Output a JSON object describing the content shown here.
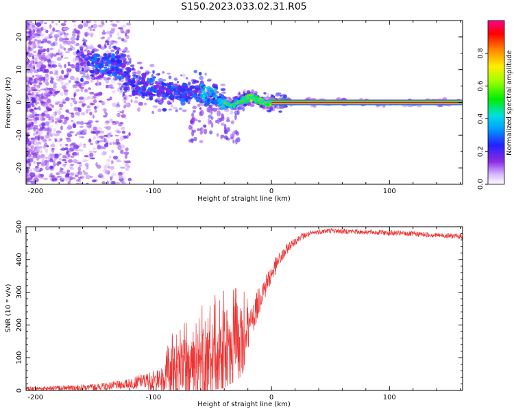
{
  "figure_title": "S150.2023.033.02.31.R05",
  "chart_data": [
    {
      "type": "heatmap",
      "title": "S150.2023.033.02.31.R05",
      "xlabel": "Height of straight line (km)",
      "ylabel": "Frequency (Hz)",
      "xlim": [
        -208,
        162
      ],
      "ylim": [
        -25,
        25
      ],
      "xticks": [
        -200,
        -100,
        0,
        100
      ],
      "xtick_labels": [
        "-200",
        "-100",
        "0",
        "100"
      ],
      "yticks": [
        -20,
        -10,
        0,
        10,
        20
      ],
      "ytick_labels": [
        "-20",
        "-10",
        "0",
        "10",
        "20"
      ],
      "colorbar": {
        "label": "Normalized spectral amplitude",
        "range": [
          0,
          1
        ],
        "ticks": [
          0.0,
          0.2,
          0.4,
          0.6,
          0.8
        ],
        "tick_labels": [
          "0.0",
          "0.2",
          "0.4",
          "0.6",
          "0.8"
        ],
        "colormap": "rainbow (white-purple-blue-cyan-green-yellow-red-magenta)"
      },
      "ridge_path": {
        "description": "Spectral ridge frequency vs height",
        "x": [
          -150,
          -130,
          -115,
          -100,
          -80,
          -60,
          -45,
          -35,
          -25,
          -18,
          -12,
          -5,
          0,
          10,
          162
        ],
        "y": [
          12,
          11,
          5,
          4,
          3,
          3,
          1,
          -1,
          0.5,
          1.5,
          0.8,
          0,
          0,
          0,
          0
        ]
      },
      "steady_line": {
        "x_start": 0,
        "x_end": 162,
        "frequency": 0,
        "amplitude": 1.0
      }
    },
    {
      "type": "line",
      "xlabel": "Height of straight line (km)",
      "ylabel": "SNR (10 * v/v)",
      "xlim": [
        -208,
        162
      ],
      "ylim": [
        0,
        500
      ],
      "xticks": [
        -200,
        -100,
        0,
        100
      ],
      "xtick_labels": [
        "-200",
        "-100",
        "0",
        "100"
      ],
      "yticks": [
        0,
        100,
        200,
        300,
        400,
        500
      ],
      "ytick_labels": [
        "0",
        "100",
        "200",
        "300",
        "400",
        "500"
      ],
      "series": [
        {
          "name": "SNR",
          "color": "#ee3333",
          "envelope_x": [
            -208,
            -150,
            -125,
            -110,
            -90,
            -85,
            -70,
            -55,
            -40,
            -25,
            -22,
            -15,
            -8,
            5,
            15,
            25,
            40,
            50,
            80,
            120,
            162
          ],
          "envelope_mean": [
            5,
            10,
            18,
            28,
            32,
            60,
            75,
            95,
            115,
            140,
            165,
            230,
            300,
            390,
            440,
            470,
            485,
            488,
            484,
            478,
            470
          ],
          "envelope_spread": [
            6,
            10,
            14,
            22,
            40,
            60,
            70,
            80,
            90,
            80,
            60,
            50,
            40,
            25,
            15,
            10,
            8,
            8,
            8,
            8,
            8
          ]
        }
      ]
    }
  ]
}
